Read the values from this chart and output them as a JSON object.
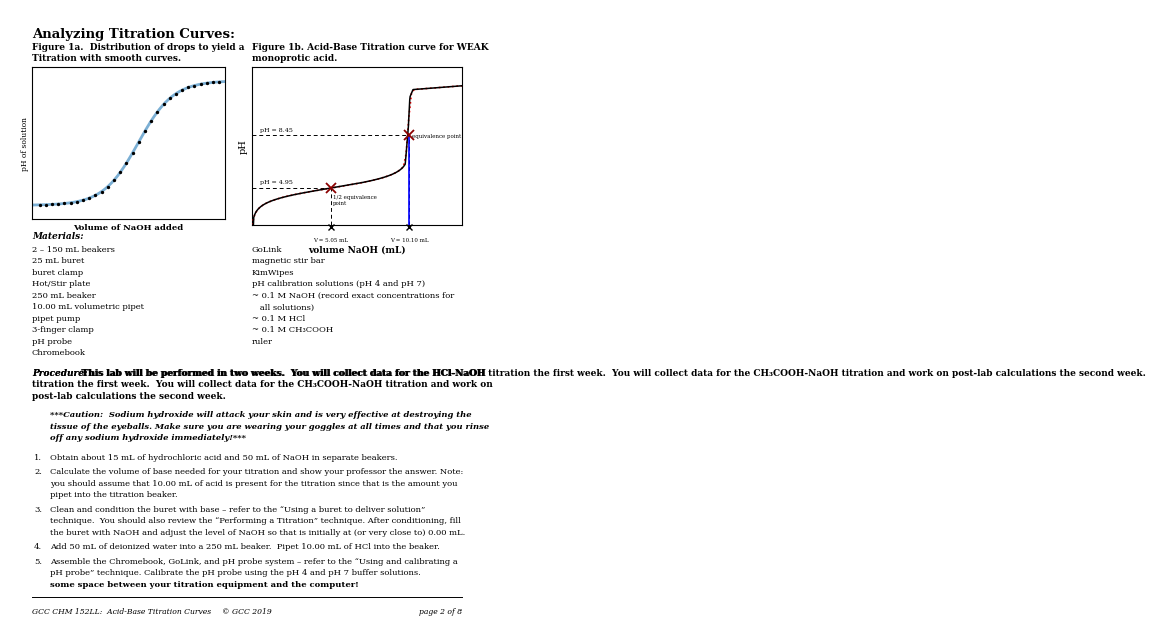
{
  "title": "Analyzing Titration Curves:",
  "fig1a_caption_bold": "Figure 1a.  Distribution of drops to yield a\nTitration with smooth curves.",
  "fig1b_caption_bold": "Figure 1b. Acid-Base Titration curve for WEAK\nmonoprotic acid.",
  "fig1a_xlabel": "Volume of NaOH added",
  "fig1b_xlabel": "volume NaOH (mL)",
  "fig1a_ylabel": "pH of solution",
  "fig1b_ylabel": "pH",
  "materials_title": "Materials:",
  "materials_left": [
    "2 – 150 mL beakers",
    "25 mL buret",
    "buret clamp",
    "Hot/Stir plate",
    "250 mL beaker",
    "10.00 mL volumetric pipet",
    "pipet pump",
    "3-finger clamp",
    "pH probe",
    "Chromebook"
  ],
  "materials_right": [
    "GoLink",
    "magnetic stir bar",
    "KimWipes",
    "pH calibration solutions (pH 4 and pH 7)",
    "~ 0.1 M NaOH (record exact concentrations for",
    "   all solutions)",
    "~ 0.1 M HCl",
    "~ 0.1 M CH₃COOH",
    "ruler"
  ],
  "procedure_italic": "Procedure:",
  "procedure_bold": " This lab will be performed in two weeks.  You will collect data for the HCl-NaOH titration the first week.  You will collect data for the CH₃COOH-NaOH titration and work on post-lab calculations the second week.",
  "caution_italic_bold": "***Caution:  Sodium hydroxide will attack your skin and is very effective at destroying the tissue of the eyeballs. Make sure you are wearing your goggles at all times and that you rinse off any sodium hydroxide immediately!***",
  "steps": [
    "Obtain about 15 mL of hydrochloric acid and 50 mL of NaOH in separate beakers.",
    "Calculate the volume of base needed for your titration and show your professor the answer. Note: you should assume that 10.00 mL of acid is present for the titration since that is the amount you pipet into the titration beaker.",
    "Clean and condition the buret with base – refer to the “Using a buret to deliver solution” technique.  You should also review the “Performing a Titration” technique. After conditioning, fill the buret with NaOH and adjust the level of NaOH so that is initially at (or very close to) 0.00 mL.",
    "Add 50 mL of deionized water into a 250 mL beaker.  Pipet 10.00 mL of HCl into the beaker.",
    "Assemble the Chromebook, GoLink, and pH probe system – refer to the “Using and calibrating a pH probe” technique. Calibrate the pH probe using the pH 4 and pH 7 buffer solutions. "
  ],
  "step5_bold_end": "Allow some space between your titration equipment and the computer!",
  "footer_left": "GCC CHM 152LL:  Acid-Base Titration Curves",
  "footer_center": "© GCC 2019",
  "footer_right": "page 2 of 8",
  "pH_eq": 8.45,
  "pH_half": 4.95,
  "V_half": 5.05,
  "V_eq": 10.1
}
